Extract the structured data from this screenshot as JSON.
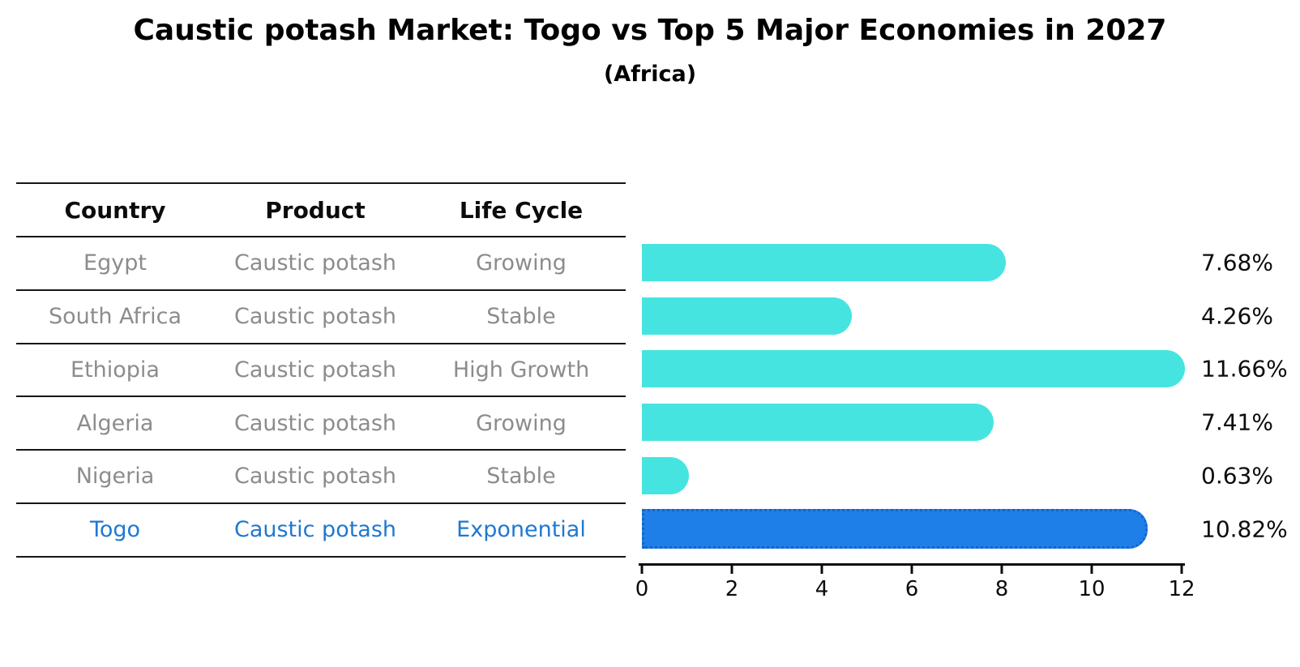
{
  "title": "Caustic potash Market: Togo vs Top 5 Major Economies in 2027",
  "subtitle": "(Africa)",
  "table": {
    "headers": [
      "Country",
      "Product",
      "Life Cycle"
    ],
    "rows": [
      {
        "country": "Egypt",
        "product": "Caustic potash",
        "life_cycle": "Growing",
        "highlight": false
      },
      {
        "country": "South Africa",
        "product": "Caustic potash",
        "life_cycle": "Stable",
        "highlight": false
      },
      {
        "country": "Ethiopia",
        "product": "Caustic potash",
        "life_cycle": "High Growth",
        "highlight": false
      },
      {
        "country": "Algeria",
        "product": "Caustic potash",
        "life_cycle": "Growing",
        "highlight": false
      },
      {
        "country": "Nigeria",
        "product": "Caustic potash",
        "life_cycle": "Stable",
        "highlight": false
      },
      {
        "country": "Togo",
        "product": "Caustic potash",
        "life_cycle": "Exponential",
        "highlight": true
      }
    ]
  },
  "chart_data": {
    "type": "bar",
    "orientation": "horizontal",
    "categories": [
      "Egypt",
      "South Africa",
      "Ethiopia",
      "Algeria",
      "Nigeria",
      "Togo"
    ],
    "values": [
      7.68,
      4.26,
      11.66,
      7.41,
      0.63,
      10.82
    ],
    "value_labels": [
      "7.68%",
      "4.26%",
      "11.66%",
      "7.41%",
      "0.63%",
      "10.82%"
    ],
    "x_ticks": [
      0,
      2,
      4,
      6,
      8,
      10,
      12
    ],
    "xlim": [
      0,
      12
    ],
    "grid": false,
    "legend": null,
    "highlight_index": 5,
    "bar_color": "#46E4E0",
    "highlight_color": "#1E7FE8",
    "highlight_border_color": "#1565CC"
  },
  "colors": {
    "table_text_gray": "#8C8C8C",
    "highlight_text_blue": "#1F78D1",
    "axis_black": "#0C0C0C"
  }
}
